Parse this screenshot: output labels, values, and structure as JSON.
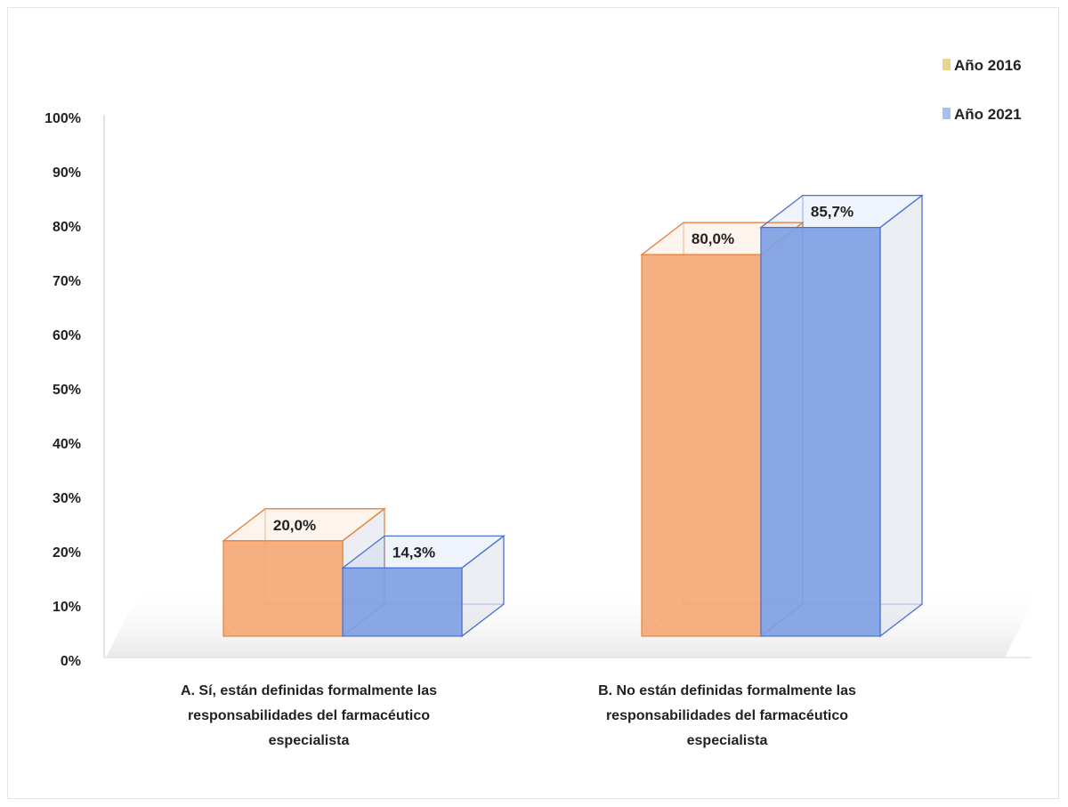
{
  "chart_data": {
    "type": "bar",
    "categories": [
      [
        "A. Sí, están definidas formalmente las",
        "responsabilidades del farmacéutico",
        "especialista"
      ],
      [
        "B. No están definidas formalmente las",
        "responsabilidades del farmacéutico",
        "especialista"
      ]
    ],
    "series": [
      {
        "name": "Año 2016",
        "values": [
          20.0,
          80.0
        ],
        "labels": [
          "20,0%",
          "80,0%"
        ]
      },
      {
        "name": "Año 2021",
        "values": [
          14.3,
          85.7
        ],
        "labels": [
          "14,3%",
          "85,7%"
        ]
      }
    ],
    "yticks": [
      "0%",
      "10%",
      "20%",
      "30%",
      "40%",
      "50%",
      "60%",
      "70%",
      "80%",
      "90%",
      "100%"
    ],
    "ylim": [
      0,
      100
    ],
    "legend_position": "top-right",
    "colors": {
      "series_2016": "#f4a875",
      "series_2016_edge": "#e48440",
      "series_2016_legend": "#e8d48a",
      "series_2021": "#7f9fe2",
      "series_2021_edge": "#4a72d4",
      "series_2021_legend": "#a9c0ee",
      "axis": "#d9d9d9"
    }
  }
}
